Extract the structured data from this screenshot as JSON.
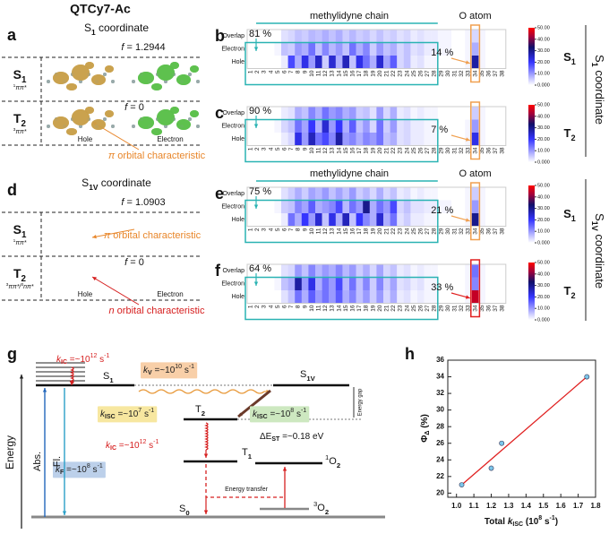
{
  "title": "QTCy7-Ac",
  "structures": [
    {
      "panel": "a",
      "coordinate": [
        [
          "S",
          "n"
        ],
        [
          "1",
          "sub"
        ],
        [
          " coordinate",
          "n"
        ]
      ],
      "f_top": [
        [
          "f",
          "i"
        ],
        [
          " = 1.2944",
          "n"
        ]
      ],
      "f_bottom": [
        [
          "f",
          "i"
        ],
        [
          " = 0",
          "n"
        ]
      ],
      "states": [
        {
          "label": [
            [
              "S",
              "b"
            ],
            [
              "1",
              "bsub"
            ]
          ],
          "sub": [
            [
              "1",
              "sup"
            ],
            [
              "ππ*",
              "i"
            ]
          ]
        },
        {
          "label": [
            [
              "T",
              "b"
            ],
            [
              "2",
              "bsub"
            ]
          ],
          "sub": [
            [
              "3",
              "sup"
            ],
            [
              "ππ*",
              "i"
            ]
          ]
        }
      ],
      "hole": "Hole",
      "electron": "Electron",
      "notes": [
        {
          "text": [
            [
              "π",
              "i"
            ],
            [
              " orbital characteristic",
              "n"
            ]
          ],
          "color": "#e8862a"
        }
      ]
    },
    {
      "panel": "d",
      "coordinate": [
        [
          "S",
          "n"
        ],
        [
          "1V",
          "sub"
        ],
        [
          " coordinate",
          "n"
        ]
      ],
      "f_top": [
        [
          "f",
          "i"
        ],
        [
          " = 1.0903",
          "n"
        ]
      ],
      "f_bottom": [
        [
          "f",
          "i"
        ],
        [
          " = 0",
          "n"
        ]
      ],
      "states": [
        {
          "label": [
            [
              "S",
              "b"
            ],
            [
              "1",
              "bsub"
            ]
          ],
          "sub": [
            [
              "1",
              "sup"
            ],
            [
              "ππ*",
              "i"
            ]
          ]
        },
        {
          "label": [
            [
              "T",
              "b"
            ],
            [
              "2",
              "bsub"
            ]
          ],
          "sub": [
            [
              "3",
              "sup"
            ],
            [
              "ππ*/",
              "i"
            ],
            [
              "3",
              "sup"
            ],
            [
              "nπ*",
              "i"
            ]
          ]
        }
      ],
      "hole": "Hole",
      "electron": "Electron",
      "notes": [
        {
          "text": [
            [
              "n",
              "i"
            ],
            [
              " orbital characteristic",
              "n"
            ]
          ],
          "color": "#d62020"
        },
        {
          "text": [
            [
              "π",
              "i"
            ],
            [
              " orbital characteristic",
              "n"
            ]
          ],
          "color": "#e8862a"
        }
      ]
    }
  ],
  "heatmaps": {
    "columns": [
      1,
      2,
      3,
      4,
      5,
      6,
      7,
      8,
      9,
      10,
      11,
      12,
      13,
      14,
      15,
      16,
      17,
      18,
      19,
      20,
      21,
      22,
      23,
      24,
      25,
      26,
      27,
      28,
      29,
      30,
      31,
      32,
      33,
      34,
      35,
      36,
      37,
      38
    ],
    "row_labels": [
      "Overlap",
      "Electron",
      "Hole"
    ],
    "clim": [
      0,
      50
    ],
    "colorbar_ticks": [
      {
        "value": 0,
        "label": "0.000"
      },
      {
        "value": 10,
        "label": "10.00"
      },
      {
        "value": 20,
        "label": "20.00"
      },
      {
        "value": 30,
        "label": "30.00"
      },
      {
        "value": 40,
        "label": "40.00"
      },
      {
        "value": 50,
        "label": "50.00"
      }
    ],
    "chain_label": "methylidyne chain",
    "o_label": "O atom",
    "panels": [
      {
        "panel": "b",
        "overlap_pct": "81 %",
        "o_pct": "14 %",
        "o_color": "#f0a050",
        "rows": [
          [
            0,
            0,
            0,
            0,
            0,
            3,
            4,
            6,
            5,
            7,
            6,
            8,
            6,
            8,
            5,
            7,
            5,
            6,
            4,
            6,
            4,
            5,
            3,
            4,
            2,
            3,
            2,
            2,
            1,
            1,
            0,
            0,
            1,
            4,
            1,
            0,
            0,
            0
          ],
          [
            0,
            0,
            0,
            0,
            1,
            6,
            5,
            10,
            8,
            14,
            6,
            12,
            7,
            10,
            6,
            14,
            8,
            12,
            5,
            10,
            6,
            8,
            4,
            6,
            3,
            4,
            2,
            2,
            1,
            1,
            0,
            0,
            1,
            8,
            1,
            0,
            0,
            0
          ],
          [
            0,
            0,
            0,
            0,
            0,
            2,
            18,
            8,
            22,
            10,
            25,
            5,
            24,
            8,
            26,
            6,
            22,
            14,
            8,
            24,
            9,
            16,
            4,
            6,
            2,
            3,
            1,
            1,
            0,
            0,
            0,
            0,
            1,
            28,
            1,
            0,
            0,
            0
          ]
        ]
      },
      {
        "panel": "c",
        "overlap_pct": "90 %",
        "o_pct": "7 %",
        "o_color": "#f0a050",
        "rows": [
          [
            0,
            0,
            0,
            0,
            0,
            2,
            3,
            8,
            6,
            12,
            8,
            14,
            10,
            12,
            8,
            10,
            5,
            6,
            3,
            10,
            4,
            8,
            2,
            3,
            1,
            2,
            1,
            1,
            0,
            0,
            0,
            0,
            0,
            5,
            1,
            0,
            0,
            0
          ],
          [
            0,
            0,
            0,
            0,
            1,
            4,
            6,
            14,
            9,
            20,
            8,
            24,
            10,
            20,
            8,
            16,
            6,
            10,
            4,
            14,
            5,
            10,
            3,
            4,
            2,
            2,
            1,
            1,
            0,
            0,
            0,
            0,
            1,
            10,
            1,
            0,
            0,
            0
          ],
          [
            0,
            0,
            0,
            0,
            0,
            2,
            4,
            22,
            10,
            26,
            14,
            18,
            12,
            28,
            10,
            12,
            8,
            12,
            10,
            14,
            6,
            8,
            3,
            4,
            2,
            2,
            1,
            1,
            0,
            0,
            0,
            0,
            1,
            22,
            1,
            0,
            0,
            0
          ]
        ]
      },
      {
        "panel": "e",
        "overlap_pct": "75 %",
        "o_pct": "21 %",
        "o_color": "#f0a050",
        "rows": [
          [
            0,
            0,
            0,
            0,
            0,
            3,
            5,
            8,
            5,
            9,
            7,
            10,
            6,
            9,
            6,
            10,
            5,
            7,
            4,
            8,
            4,
            6,
            2,
            3,
            1,
            2,
            1,
            1,
            0,
            0,
            0,
            0,
            1,
            5,
            1,
            0,
            0,
            0
          ],
          [
            0,
            0,
            0,
            0,
            1,
            5,
            6,
            12,
            9,
            16,
            8,
            10,
            12,
            18,
            7,
            14,
            10,
            30,
            8,
            14,
            10,
            18,
            4,
            6,
            3,
            3,
            2,
            2,
            1,
            1,
            0,
            0,
            1,
            10,
            1,
            0,
            0,
            0
          ],
          [
            0,
            0,
            0,
            0,
            0,
            2,
            14,
            8,
            20,
            10,
            24,
            6,
            22,
            8,
            26,
            6,
            20,
            12,
            8,
            24,
            8,
            14,
            3,
            5,
            2,
            2,
            1,
            1,
            0,
            0,
            0,
            0,
            1,
            30,
            1,
            0,
            0,
            0
          ]
        ]
      },
      {
        "panel": "f",
        "overlap_pct": "64 %",
        "o_pct": "33 %",
        "o_color": "#e02020",
        "rows": [
          [
            0,
            0,
            0,
            0,
            0,
            3,
            4,
            10,
            6,
            12,
            7,
            10,
            8,
            12,
            7,
            10,
            5,
            8,
            4,
            9,
            4,
            6,
            2,
            3,
            1,
            2,
            1,
            1,
            0,
            0,
            0,
            0,
            1,
            14,
            1,
            0,
            0,
            0
          ],
          [
            0,
            0,
            0,
            0,
            1,
            6,
            8,
            28,
            10,
            22,
            8,
            14,
            10,
            18,
            7,
            14,
            6,
            12,
            5,
            12,
            5,
            9,
            3,
            4,
            2,
            3,
            1,
            1,
            0,
            0,
            0,
            0,
            1,
            12,
            1,
            0,
            0,
            0
          ],
          [
            0,
            0,
            0,
            0,
            0,
            3,
            6,
            14,
            8,
            16,
            10,
            14,
            10,
            16,
            8,
            12,
            6,
            10,
            5,
            10,
            4,
            8,
            2,
            3,
            1,
            2,
            1,
            1,
            0,
            0,
            0,
            0,
            1,
            45,
            1,
            0,
            0,
            0
          ]
        ]
      }
    ]
  },
  "side_labels": [
    {
      "states": [
        [
          [
            "S",
            "b"
          ],
          [
            "1",
            "bsub"
          ]
        ],
        [
          [
            "T",
            "b"
          ],
          [
            "2",
            "bsub"
          ]
        ]
      ],
      "coordinate": [
        [
          "S",
          "n"
        ],
        [
          "1",
          "sub"
        ],
        [
          " coordinate",
          "n"
        ]
      ]
    },
    {
      "states": [
        [
          [
            "S",
            "b"
          ],
          [
            "1",
            "bsub"
          ]
        ],
        [
          [
            "T",
            "b"
          ],
          [
            "2",
            "bsub"
          ]
        ]
      ],
      "coordinate": [
        [
          "S",
          "n"
        ],
        [
          "1V",
          "sub"
        ],
        [
          " coordinate",
          "n"
        ]
      ]
    }
  ],
  "diagram": {
    "panel": "g",
    "axis_label": "Energy",
    "levels": {
      "S0": [
        [
          "S",
          "n"
        ],
        [
          "0",
          "sub"
        ]
      ],
      "S1": [
        [
          "S",
          "n"
        ],
        [
          "1",
          "sub"
        ]
      ],
      "S1V": [
        [
          "S",
          "n"
        ],
        [
          "1V",
          "sub"
        ]
      ],
      "T2": [
        [
          "T",
          "n"
        ],
        [
          "2",
          "sub"
        ]
      ],
      "T1": [
        [
          "T",
          "n"
        ],
        [
          "1",
          "sub"
        ]
      ],
      "singlet_O2": [
        [
          "1",
          "sup"
        ],
        [
          "O",
          "n"
        ],
        [
          "2",
          "sub"
        ]
      ],
      "triplet_O2": [
        [
          "3",
          "sup"
        ],
        [
          "O",
          "n"
        ],
        [
          "2",
          "sub"
        ]
      ]
    },
    "rates": [
      {
        "text": [
          [
            "k",
            "i"
          ],
          [
            "IC",
            "sub"
          ],
          [
            " =~10",
            "n"
          ],
          [
            "12",
            "sup"
          ],
          [
            " s",
            "n"
          ],
          [
            "-1",
            "sup"
          ]
        ],
        "color": "#d62020"
      },
      {
        "text": [
          [
            "k",
            "i"
          ],
          [
            "V",
            "sub"
          ],
          [
            " =~10",
            "n"
          ],
          [
            "10",
            "sup"
          ],
          [
            " s",
            "n"
          ],
          [
            "-1",
            "sup"
          ]
        ],
        "color": "#222222",
        "box": "#f8cfa8"
      },
      {
        "text": [
          [
            "k",
            "i"
          ],
          [
            "ISC",
            "sub"
          ],
          [
            " =~10",
            "n"
          ],
          [
            "7",
            "sup"
          ],
          [
            " s",
            "n"
          ],
          [
            "-1",
            "sup"
          ]
        ],
        "color": "#222222",
        "box": "#f7e7a0"
      },
      {
        "text": [
          [
            "k",
            "i"
          ],
          [
            "ISC",
            "sub"
          ],
          [
            " =~10",
            "n"
          ],
          [
            "8",
            "sup"
          ],
          [
            " s",
            "n"
          ],
          [
            "-1",
            "sup"
          ]
        ],
        "color": "#222222",
        "box": "#cde8c0"
      },
      {
        "text": [
          [
            "k",
            "i"
          ],
          [
            "IC",
            "sub"
          ],
          [
            " =~10",
            "n"
          ],
          [
            "12",
            "sup"
          ],
          [
            " s",
            "n"
          ],
          [
            "-1",
            "sup"
          ]
        ],
        "color": "#d62020"
      },
      {
        "text": [
          [
            "k",
            "i"
          ],
          [
            "F",
            "sub"
          ],
          [
            " =~10",
            "n"
          ],
          [
            "8",
            "sup"
          ],
          [
            " s",
            "n"
          ],
          [
            "-1",
            "sup"
          ]
        ],
        "color": "#222222",
        "box": "#bcd0ea"
      }
    ],
    "gap_label": [
      [
        "ΔE",
        "n"
      ],
      [
        "ST",
        "sub"
      ],
      [
        " =~0.18 eV",
        "n"
      ]
    ],
    "energy_gap": "Energy gap",
    "abs": "Abs.",
    "fl": "Fl.",
    "energy_transfer": "Energy transfer"
  },
  "chart_data": {
    "type": "scatter",
    "panel": "h",
    "x": [
      1.03,
      1.2,
      1.26,
      1.75
    ],
    "values": [
      21,
      23,
      26,
      34
    ],
    "color": "#7cc6ea",
    "fit": {
      "x": [
        1.03,
        1.75
      ],
      "y": [
        21,
        34
      ],
      "color": "#e02020"
    },
    "xlim": [
      0.95,
      1.8
    ],
    "ylim": [
      19.5,
      36
    ],
    "xticks": [
      {
        "value": 1,
        "label": "1.0"
      },
      1.1,
      1.2,
      1.3,
      1.4,
      1.5,
      1.6,
      1.7,
      1.8
    ],
    "yticks": [
      20,
      22,
      24,
      26,
      28,
      30,
      32,
      34,
      36
    ],
    "x_label": [
      [
        "Total ",
        "b"
      ],
      [
        "k",
        "bi"
      ],
      [
        "ISC",
        "bsub"
      ],
      [
        " (10",
        "b"
      ],
      [
        "8",
        "bsup"
      ],
      [
        " s",
        "b"
      ],
      [
        "-1",
        "bsup"
      ],
      [
        ")",
        "b"
      ]
    ],
    "y_label": [
      [
        "Φ",
        "b"
      ],
      [
        "Δ",
        "bsub"
      ],
      [
        " (%)",
        "b"
      ]
    ]
  }
}
